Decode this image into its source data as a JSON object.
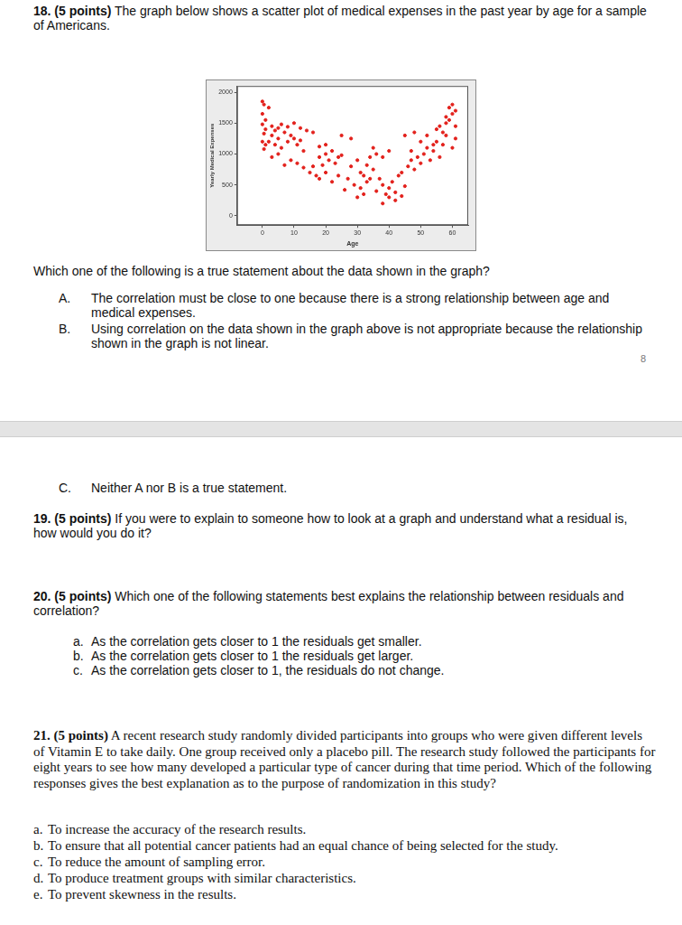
{
  "page_number": "8",
  "q18": {
    "label": "18. (5 points)",
    "text": "The graph below shows a scatter plot of medical expenses in the past year by age for a sample of Americans.",
    "prompt": "Which one of the following is a true statement about the data shown in the graph?",
    "options": [
      {
        "letter": "A.",
        "text": "The correlation must be close to one because there is a strong relationship between age and medical expenses."
      },
      {
        "letter": "B.",
        "text": "Using correlation on the data shown in the graph above is not appropriate because the relationship shown in the graph is not linear."
      },
      {
        "letter": "C.",
        "text": "Neither A nor B is a true statement."
      }
    ]
  },
  "q19": {
    "label": "19. (5 points)",
    "text": "If you were to explain to someone how to look at a graph and understand what a residual is, how would you do it?"
  },
  "q20": {
    "label": "20. (5 points)",
    "text": "Which one of the following statements best explains the relationship between residuals and correlation?",
    "options": [
      {
        "letter": "a.",
        "text": "As the correlation gets closer to 1 the residuals get smaller."
      },
      {
        "letter": "b.",
        "text": "As the correlation gets closer to 1 the residuals get larger."
      },
      {
        "letter": "c.",
        "text": "As the correlation gets closer to 1, the residuals do not change."
      }
    ]
  },
  "q21": {
    "label": "21. (5 points)",
    "text": "A recent research study randomly divided participants into groups who were given different levels of Vitamin E to take daily. One group received only a placebo pill. The research study followed the participants for eight years to see how many developed a particular type of cancer during that time period. Which of the following responses gives the best explanation as to the purpose of randomization in this study?",
    "options": [
      {
        "letter": "a.",
        "text": "To increase the accuracy of the research results."
      },
      {
        "letter": "b.",
        "text": "To ensure that all potential cancer patients had an equal chance of being selected for the study."
      },
      {
        "letter": "c.",
        "text": "To reduce the amount of sampling error."
      },
      {
        "letter": "d.",
        "text": "To produce treatment groups with similar characteristics."
      },
      {
        "letter": "e.",
        "text": "To prevent skewness in the results."
      }
    ]
  },
  "chart_data": {
    "type": "scatter",
    "x_label": "Age",
    "y_label": "Yearly Medical Expenses",
    "color": "#e3201b",
    "marker": "circle",
    "grid": false,
    "xlim": [
      -8,
      65
    ],
    "xticks": [
      0,
      10,
      20,
      30,
      40,
      50,
      60
    ],
    "ylim": [
      -150,
      2100
    ],
    "yticks": [
      0,
      500,
      1000,
      1500,
      2000
    ],
    "x": [
      0,
      0.5,
      0,
      1,
      0,
      1,
      0.5,
      0,
      1,
      0.5,
      2,
      3,
      4,
      5,
      6,
      7,
      8,
      3,
      5,
      9,
      2,
      4,
      6,
      8,
      10,
      11,
      12,
      13,
      3,
      5,
      7,
      9,
      11,
      13,
      15,
      16,
      17,
      18,
      19,
      20,
      21,
      22,
      23,
      24,
      25,
      18,
      20,
      22,
      24,
      26,
      27,
      28,
      29,
      30,
      31,
      32,
      33,
      34,
      35,
      30,
      31,
      32,
      33,
      34,
      36,
      37,
      38,
      39,
      40,
      41,
      42,
      43,
      44,
      45,
      46,
      47,
      48,
      49,
      50,
      38,
      40,
      42,
      44,
      51,
      52,
      53,
      54,
      55,
      56,
      57,
      58,
      60,
      61,
      50,
      52,
      54,
      55,
      56,
      57,
      58,
      59,
      60,
      61,
      60,
      61,
      59,
      58,
      48,
      45,
      40,
      38,
      36,
      35,
      47,
      10,
      12,
      14,
      16,
      18,
      20,
      25,
      28
    ],
    "values": [
      1850,
      1800,
      1650,
      1550,
      1480,
      1400,
      1330,
      1200,
      1150,
      1080,
      1750,
      1450,
      1380,
      1420,
      1480,
      1350,
      1440,
      1300,
      1250,
      1300,
      1200,
      1150,
      1100,
      1200,
      1250,
      1150,
      1220,
      1050,
      950,
      1000,
      820,
      900,
      850,
      780,
      700,
      800,
      650,
      950,
      820,
      1000,
      900,
      1050,
      850,
      950,
      980,
      600,
      700,
      550,
      650,
      420,
      600,
      800,
      500,
      900,
      700,
      650,
      820,
      950,
      750,
      300,
      450,
      350,
      550,
      600,
      400,
      600,
      500,
      350,
      450,
      550,
      250,
      650,
      700,
      480,
      800,
      900,
      750,
      950,
      850,
      200,
      300,
      380,
      320,
      1000,
      1100,
      900,
      1050,
      1200,
      950,
      1150,
      1300,
      1100,
      1250,
      1200,
      1300,
      1150,
      1400,
      1450,
      1350,
      1500,
      1550,
      1650,
      1700,
      1800,
      1450,
      1750,
      1600,
      1350,
      1300,
      1050,
      950,
      1000,
      1100,
      1050,
      1500,
      1420,
      1380,
      1350,
      1120,
      1150,
      1300,
      1250
    ]
  }
}
